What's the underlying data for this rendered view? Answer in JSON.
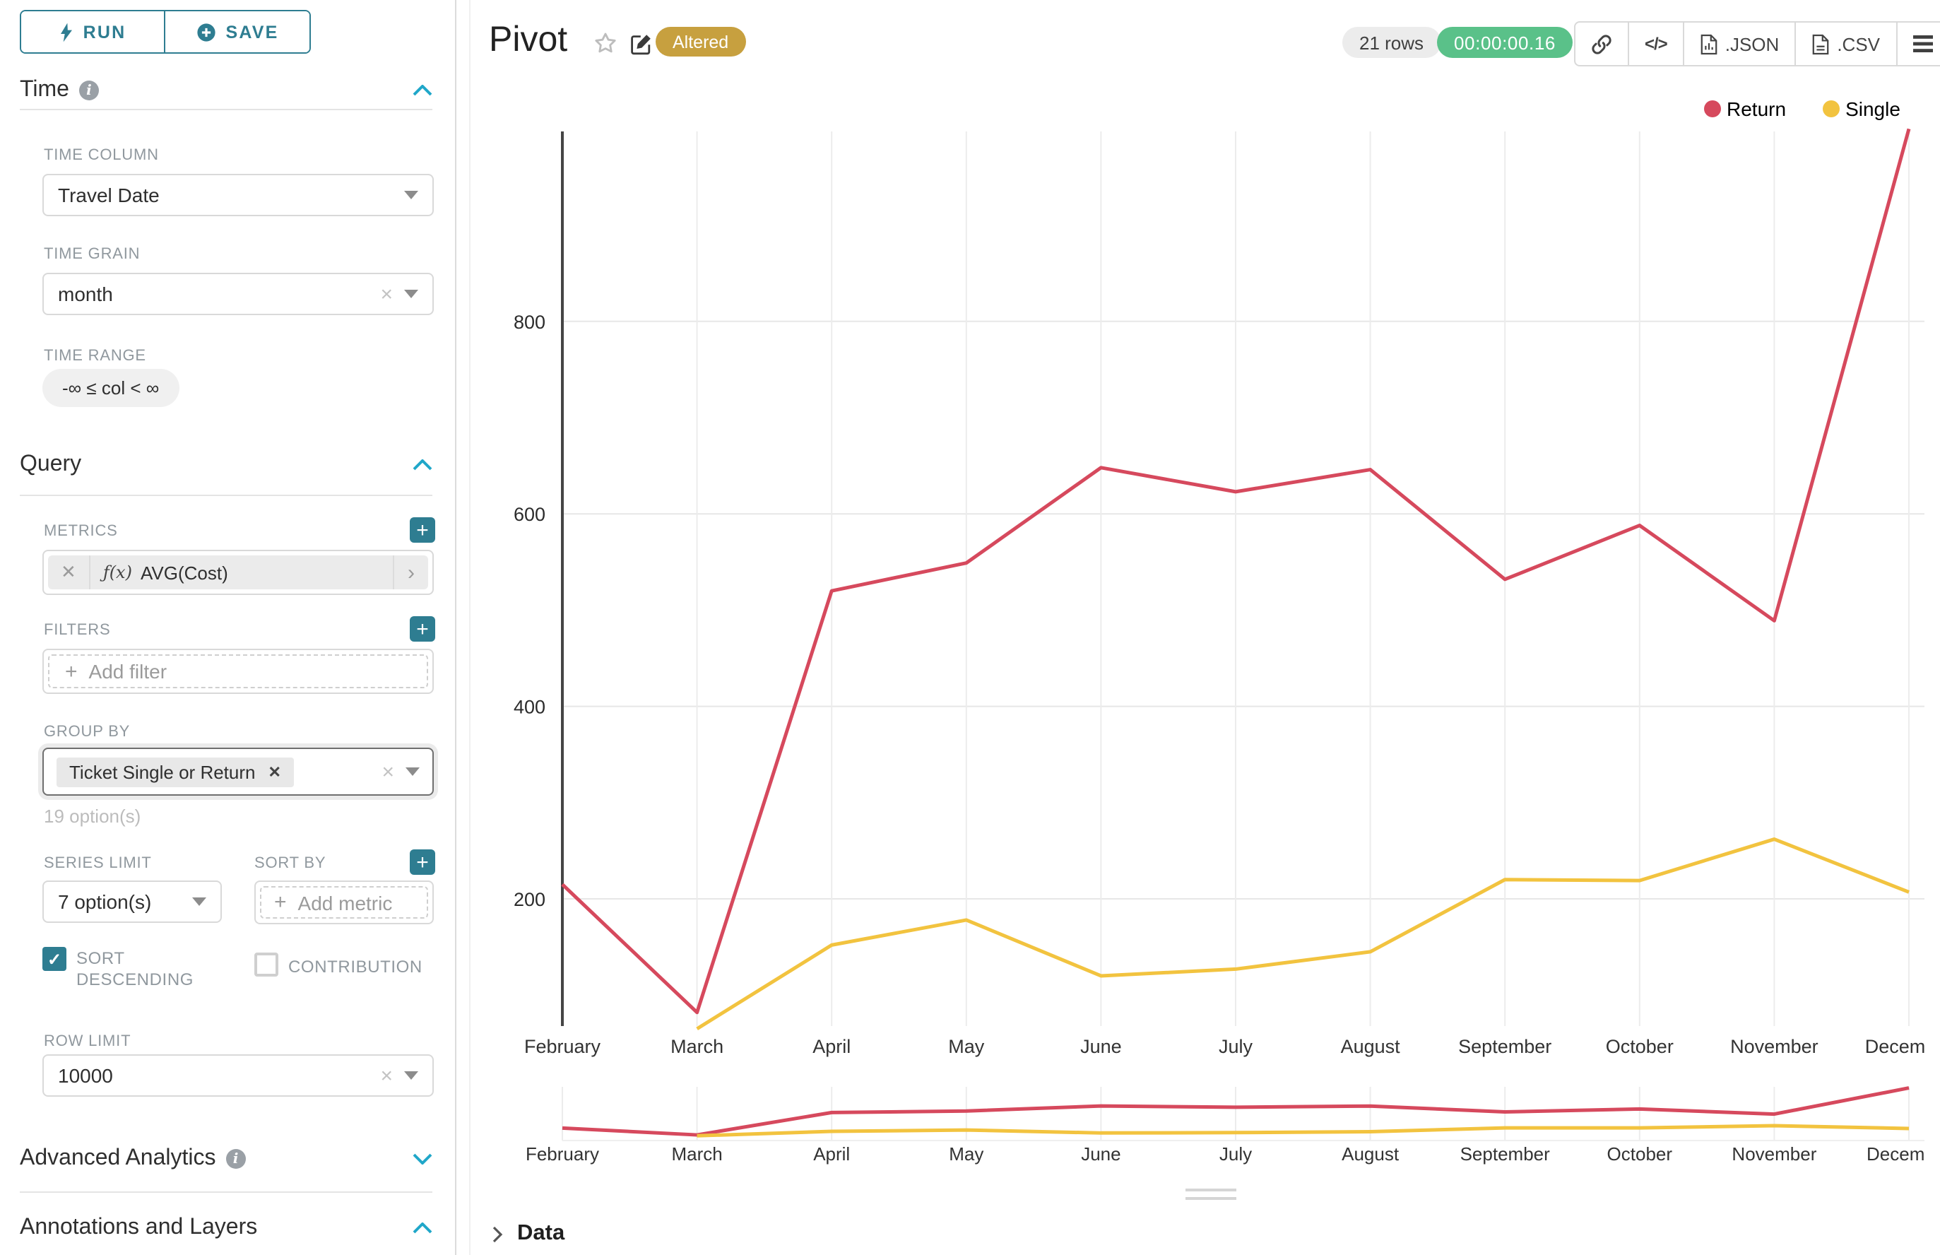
{
  "sidebar": {
    "run_label": "RUN",
    "save_label": "SAVE",
    "time": {
      "heading": "Time",
      "time_column_label": "TIME COLUMN",
      "time_column_value": "Travel Date",
      "time_grain_label": "TIME GRAIN",
      "time_grain_value": "month",
      "time_range_label": "TIME RANGE",
      "time_range_value": "-∞ ≤ col < ∞"
    },
    "query": {
      "heading": "Query",
      "metrics_label": "METRICS",
      "metric_fx": "ƒ(x)",
      "metric_value": "AVG(Cost)",
      "filters_label": "FILTERS",
      "add_filter_label": "Add filter",
      "group_by_label": "GROUP BY",
      "group_by_tag": "Ticket Single or Return",
      "options_hint": "19 option(s)",
      "series_limit_label": "SERIES LIMIT",
      "series_limit_value": "7 option(s)",
      "sort_by_label": "SORT BY",
      "add_metric_label": "Add metric",
      "sort_descending_label": "SORT DESCENDING",
      "sort_descending_checked": true,
      "contribution_label": "CONTRIBUTION",
      "contribution_checked": false,
      "row_limit_label": "ROW LIMIT",
      "row_limit_value": "10000"
    },
    "advanced_heading": "Advanced Analytics",
    "annotations_heading": "Annotations and Layers"
  },
  "header": {
    "title": "Pivot",
    "altered_badge": "Altered",
    "rows_badge": "21 rows",
    "timer_badge": "00:00:00.16",
    "json_label": ".JSON",
    "csv_label": ".CSV"
  },
  "footer": {
    "data_label": "Data"
  },
  "chart_data": {
    "type": "line",
    "title": "Pivot",
    "xlabel": "",
    "ylabel": "",
    "categories": [
      "February",
      "March",
      "April",
      "May",
      "June",
      "July",
      "August",
      "September",
      "October",
      "November",
      "December"
    ],
    "series": [
      {
        "name": "Return",
        "color": "#d6495d",
        "values": [
          215,
          82,
          520,
          549,
          648,
          623,
          646,
          532,
          588,
          489,
          1000
        ]
      },
      {
        "name": "Single",
        "color": "#f2c33f",
        "values": [
          null,
          65,
          152,
          178,
          120,
          127,
          145,
          220,
          219,
          262,
          207
        ]
      }
    ],
    "y_ticks": [
      200,
      400,
      600,
      800
    ],
    "ylim": [
      0,
      1000
    ],
    "grid": true,
    "legend_position": "top-right",
    "has_mini_map": true
  }
}
